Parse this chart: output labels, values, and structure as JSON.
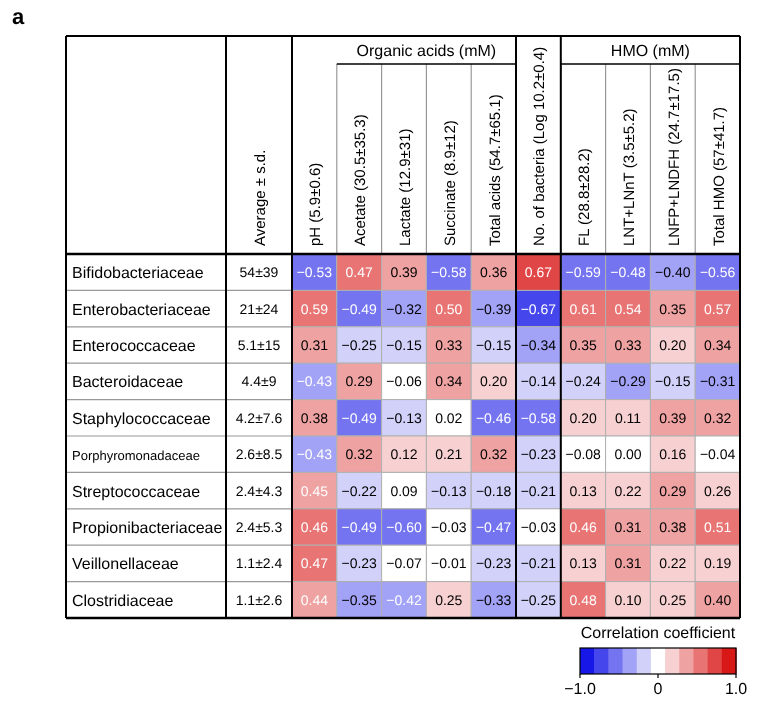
{
  "chart_data": {
    "type": "heatmap",
    "annotations": [
      "a",
      "Organic acids (mM)",
      "HMO (mM)",
      "Average ± s.d."
    ],
    "categories": [
      "pH (5.9±0.6)",
      "Acetate (30.5±35.3)",
      "Lactate (12.9±31)",
      "Succinate (8.9±12)",
      "Total acids (54.7±65.1)",
      "No. of bacteria (Log 10.2±0.4)",
      "FL (28.8±28.2)",
      "LNT+LNnT (3.5±5.2)",
      "LNFP+LNDFH (24.7±17.5)",
      "Total HMO (57±41.7)"
    ],
    "y_categories": [
      "Bifidobacteriaceae",
      "Enterobacteriaceae",
      "Enterococcaceae",
      "Bacteroidaceae",
      "Staphylococcaceae",
      "Porphyromonadaceae",
      "Streptococcaceae",
      "Propionibacteriaceae",
      "Veillonellaceae",
      "Clostridiaceae"
    ],
    "y2_categories": [
      "54±39",
      "21±24",
      "5.1±15",
      "4.4±9",
      "4.2±7.6",
      "2.6±8.5",
      "2.4±4.3",
      "2.4±5.3",
      "1.1±2.4",
      "1.1±2.6"
    ],
    "cells": [
      [
        -0.53,
        0.47,
        0.39,
        -0.58,
        0.36,
        0.67,
        -0.59,
        -0.48,
        -0.4,
        -0.56
      ],
      [
        0.59,
        -0.49,
        -0.32,
        0.5,
        -0.39,
        -0.67,
        0.61,
        0.54,
        0.35,
        0.57
      ],
      [
        0.31,
        -0.25,
        -0.15,
        0.33,
        -0.15,
        -0.34,
        0.35,
        0.33,
        0.2,
        0.34
      ],
      [
        -0.43,
        0.29,
        -0.06,
        0.34,
        0.2,
        -0.14,
        -0.24,
        -0.29,
        -0.15,
        -0.31
      ],
      [
        0.38,
        -0.49,
        -0.13,
        0.02,
        -0.46,
        -0.58,
        0.2,
        0.11,
        0.39,
        0.32
      ],
      [
        -0.43,
        0.32,
        0.12,
        0.21,
        0.32,
        -0.23,
        -0.08,
        0.0,
        0.16,
        -0.04
      ],
      [
        0.45,
        -0.22,
        0.09,
        -0.13,
        -0.18,
        -0.21,
        0.13,
        0.22,
        0.29,
        0.26
      ],
      [
        0.46,
        -0.49,
        -0.6,
        -0.03,
        -0.47,
        -0.03,
        0.46,
        0.31,
        0.38,
        0.51
      ],
      [
        0.47,
        -0.23,
        -0.07,
        -0.01,
        -0.23,
        -0.21,
        0.13,
        0.31,
        0.22,
        0.19
      ],
      [
        0.44,
        -0.35,
        -0.42,
        0.25,
        -0.33,
        -0.25,
        0.48,
        0.1,
        0.25,
        0.4
      ]
    ],
    "cell_labels": [
      [
        "−0.53",
        "0.47",
        "0.39",
        "−0.58",
        "0.36",
        "0.67",
        "−0.59",
        "−0.48",
        "−0.40",
        "−0.56"
      ],
      [
        "0.59",
        "−0.49",
        "−0.32",
        "0.50",
        "−0.39",
        "−0.67",
        "0.61",
        "0.54",
        "0.35",
        "0.57"
      ],
      [
        "0.31",
        "−0.25",
        "−0.15",
        "0.33",
        "−0.15",
        "−0.34",
        "0.35",
        "0.33",
        "0.20",
        "0.34"
      ],
      [
        "−0.43",
        "0.29",
        "−0.06",
        "0.34",
        "0.20",
        "−0.14",
        "−0.24",
        "−0.29",
        "−0.15",
        "−0.31"
      ],
      [
        "0.38",
        "−0.49",
        "−0.13",
        "0.02",
        "−0.46",
        "−0.58",
        "0.20",
        "0.11",
        "0.39",
        "0.32"
      ],
      [
        "−0.43",
        "0.32",
        "0.12",
        "0.21",
        "0.32",
        "−0.23",
        "−0.08",
        "0.00",
        "0.16",
        "−0.04"
      ],
      [
        "0.45",
        "−0.22",
        "0.09",
        "−0.13",
        "−0.18",
        "−0.21",
        "0.13",
        "0.22",
        "0.29",
        "0.26"
      ],
      [
        "0.46",
        "−0.49",
        "−0.60",
        "−0.03",
        "−0.47",
        "−0.03",
        "0.46",
        "0.31",
        "0.38",
        "0.51"
      ],
      [
        "0.47",
        "−0.23",
        "−0.07",
        "−0.01",
        "−0.23",
        "−0.21",
        "0.13",
        "0.31",
        "0.22",
        "0.19"
      ],
      [
        "0.44",
        "−0.35",
        "−0.42",
        "0.25",
        "−0.33",
        "−0.25",
        "0.48",
        "0.10",
        "0.25",
        "0.40"
      ]
    ],
    "data_labels": true,
    "clabel": "Correlation coefficient",
    "clim": [
      -1,
      1
    ],
    "cticks": [
      {
        "value": -1,
        "label": "−1.0"
      },
      0,
      {
        "value": 1,
        "label": "1.0"
      }
    ]
  }
}
